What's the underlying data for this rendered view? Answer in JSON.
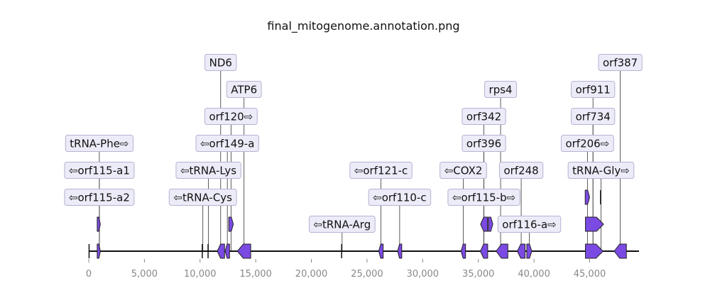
{
  "title": "final_mitogenome.annotation.png",
  "colors": {
    "feature_fill": "#7b4ae2",
    "feature_stroke": "#222222",
    "label_bg": "#ecebf8",
    "label_border": "#b6b2d2",
    "tick_text": "#888888"
  },
  "axis": {
    "xlim": [
      0,
      49000
    ],
    "ticks": [
      0,
      5000,
      10000,
      15000,
      20000,
      25000,
      30000,
      35000,
      40000,
      45000
    ],
    "tick_labels": [
      "0",
      "5,000",
      "10,000",
      "15,000",
      "20,000",
      "25,000",
      "30,000",
      "35,000",
      "40,000",
      "45,000"
    ]
  },
  "features": [
    {
      "start": 30,
      "end": 90,
      "strand": 0,
      "level": 0
    },
    {
      "start": 760,
      "end": 1040,
      "strand": 1,
      "level": 0
    },
    {
      "start": 760,
      "end": 1040,
      "strand": 1,
      "level": 1
    },
    {
      "start": 10200,
      "end": 10280,
      "strand": 0,
      "level": 0
    },
    {
      "start": 10720,
      "end": 10800,
      "strand": 0,
      "level": 0
    },
    {
      "start": 11550,
      "end": 12200,
      "strand": -1,
      "level": 0
    },
    {
      "start": 12250,
      "end": 12650,
      "strand": -1,
      "level": 0
    },
    {
      "start": 12580,
      "end": 12990,
      "strand": 1,
      "level": 1
    },
    {
      "start": 13350,
      "end": 14550,
      "strand": -1,
      "level": 0
    },
    {
      "start": 22720,
      "end": 22800,
      "strand": 0,
      "level": 0
    },
    {
      "start": 26050,
      "end": 26450,
      "strand": -1,
      "level": 0
    },
    {
      "start": 27750,
      "end": 28120,
      "strand": -1,
      "level": 0
    },
    {
      "start": 33450,
      "end": 33850,
      "strand": -1,
      "level": 0
    },
    {
      "start": 35180,
      "end": 35840,
      "strand": -1,
      "level": 0
    },
    {
      "start": 35200,
      "end": 35830,
      "strand": -1,
      "level": 1
    },
    {
      "start": 35900,
      "end": 36300,
      "strand": 1,
      "level": 1
    },
    {
      "start": 36600,
      "end": 37650,
      "strand": -1,
      "level": 0
    },
    {
      "start": 38500,
      "end": 39200,
      "strand": -1,
      "level": 0
    },
    {
      "start": 39350,
      "end": 39800,
      "strand": 1,
      "level": 0
    },
    {
      "start": 44600,
      "end": 45000,
      "strand": 1,
      "level": 2
    },
    {
      "start": 44620,
      "end": 46250,
      "strand": 1,
      "level": 1
    },
    {
      "start": 44620,
      "end": 46200,
      "strand": 1,
      "level": 0
    },
    {
      "start": 45980,
      "end": 46060,
      "strand": 0,
      "level": 2
    },
    {
      "start": 47200,
      "end": 48300,
      "strand": -1,
      "level": 0
    }
  ],
  "labels": [
    {
      "text": "tRNA-Phe⇨",
      "x": 950,
      "row": 4,
      "shift": 0
    },
    {
      "text": "⇦orf115-a1",
      "x": 950,
      "row": 3,
      "shift": 0
    },
    {
      "text": "⇦orf115-a2",
      "x": 950,
      "row": 2,
      "shift": 0
    },
    {
      "text": "⇦tRNA-Cys",
      "x": 10250,
      "row": 2,
      "shift": 0
    },
    {
      "text": "⇦tRNA-Lys",
      "x": 10750,
      "row": 3,
      "shift": 0
    },
    {
      "text": "ND6",
      "x": 11850,
      "row": 7,
      "shift": 0
    },
    {
      "text": "⇦orf149-a",
      "x": 12450,
      "row": 4,
      "shift": 0
    },
    {
      "text": "orf120⇨",
      "x": 12780,
      "row": 5,
      "shift": 0
    },
    {
      "text": "ATP6",
      "x": 13950,
      "row": 6,
      "shift": 0
    },
    {
      "text": "⇦tRNA-Arg",
      "x": 22760,
      "row": 1,
      "shift": 0
    },
    {
      "text": "⇦orf121-c",
      "x": 26250,
      "row": 3,
      "shift": 0
    },
    {
      "text": "⇦orf110-c",
      "x": 27930,
      "row": 2,
      "shift": 0
    },
    {
      "text": "⇦COX2",
      "x": 33650,
      "row": 3,
      "shift": 0
    },
    {
      "text": "⇦orf115-b⇨",
      "x": 35500,
      "row": 2,
      "shift": 0
    },
    {
      "text": "orf396",
      "x": 35500,
      "row": 4,
      "shift": 0
    },
    {
      "text": "orf342",
      "x": 35500,
      "row": 5,
      "shift": 0
    },
    {
      "text": "rps4",
      "x": 37000,
      "row": 6,
      "shift": 0
    },
    {
      "text": "orf248",
      "x": 38850,
      "row": 3,
      "shift": 0
    },
    {
      "text": "orf116-a⇨",
      "x": 39580,
      "row": 1,
      "shift": 0
    },
    {
      "text": "orf206⇨",
      "x": 44800,
      "row": 4,
      "shift": 0
    },
    {
      "text": "tRNA-Gly⇨",
      "x": 46020,
      "row": 3,
      "shift": 0
    },
    {
      "text": "orf734",
      "x": 45300,
      "row": 5,
      "shift": 0
    },
    {
      "text": "orf911",
      "x": 45300,
      "row": 6,
      "shift": 0
    },
    {
      "text": "orf387",
      "x": 47750,
      "row": 7,
      "shift": 0
    }
  ]
}
